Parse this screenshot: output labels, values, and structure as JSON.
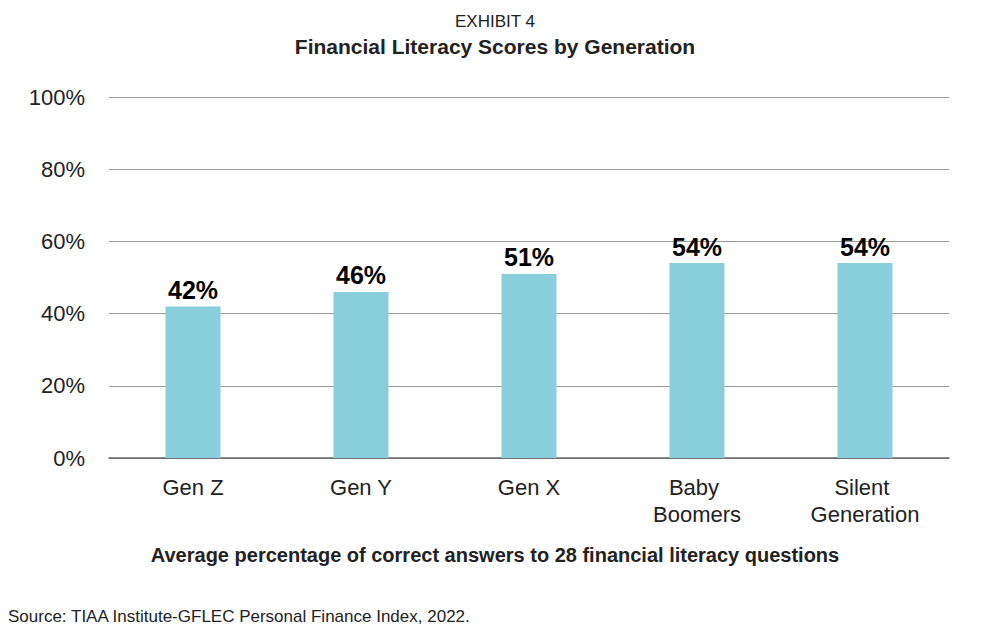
{
  "chart_data": {
    "type": "bar",
    "subtitle": "EXHIBIT 4",
    "title": "Financial Literacy Scores by Generation",
    "x_label": "Average percentage of correct answers to 28 financial literacy questions",
    "source": "Source: TIAA Institute-GFLEC Personal Finance Index, 2022.",
    "categories": [
      "Gen Z",
      "Gen Y",
      "Gen X",
      "Baby Boomers",
      "Silent Generation"
    ],
    "values": [
      42,
      46,
      51,
      54,
      54
    ],
    "value_labels": [
      "42%",
      "46%",
      "51%",
      "54%",
      "54%"
    ],
    "color": "#88cedb",
    "ylim": [
      0,
      100
    ],
    "yticks": [
      {
        "value": 0,
        "label": "0%"
      },
      {
        "value": 20,
        "label": "20%"
      },
      {
        "value": 40,
        "label": "40%"
      },
      {
        "value": 60,
        "label": "60%"
      },
      {
        "value": 80,
        "label": "80%"
      },
      {
        "value": 100,
        "label": "100%"
      }
    ],
    "grid": true,
    "data_labels": true
  }
}
